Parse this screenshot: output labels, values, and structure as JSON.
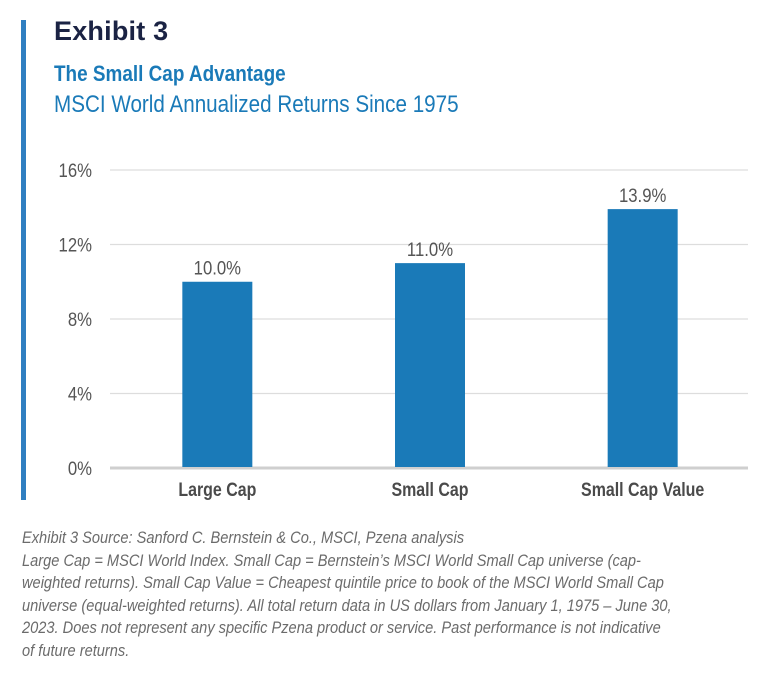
{
  "header": {
    "exhibit": "Exhibit 3",
    "title": "The Small Cap Advantage",
    "subtitle": "MSCI World Annualized Returns Since 1975"
  },
  "colors": {
    "accent": "#2f7fc1",
    "bar": "#1a7ab8",
    "exhibit_text": "#1b2344",
    "title_text": "#1a7ab8",
    "axis_text": "#555555",
    "gridline": "#dddddd"
  },
  "chart_data": {
    "type": "bar",
    "title": "The Small Cap Advantage",
    "subtitle": "MSCI World Annualized Returns Since 1975",
    "categories": [
      "Large Cap",
      "Small Cap",
      "Small Cap Value"
    ],
    "values": [
      10.0,
      11.0,
      13.9
    ],
    "value_labels": [
      "10.0%",
      "11.0%",
      "13.9%"
    ],
    "xlabel": "",
    "ylabel": "",
    "ylim": [
      0,
      16
    ],
    "yticks": [
      0,
      4,
      8,
      12,
      16
    ],
    "ytick_labels": [
      "0%",
      "4%",
      "8%",
      "12%",
      "16%"
    ],
    "grid": true,
    "legend": "none"
  },
  "footnote": {
    "source": "Exhibit 3 Source: Sanford C. Bernstein & Co., MSCI, Pzena analysis",
    "body": "Large Cap = MSCI World Index. Small Cap = Bernstein’s MSCI World Small Cap universe (cap-weighted returns). Small Cap Value = Cheapest quintile price to book of the MSCI World Small Cap universe (equal-weighted returns). All total return data in US dollars from January 1, 1975 – June 30, 2023. Does not represent any specific Pzena product or service. Past performance is not indicative of future returns."
  }
}
